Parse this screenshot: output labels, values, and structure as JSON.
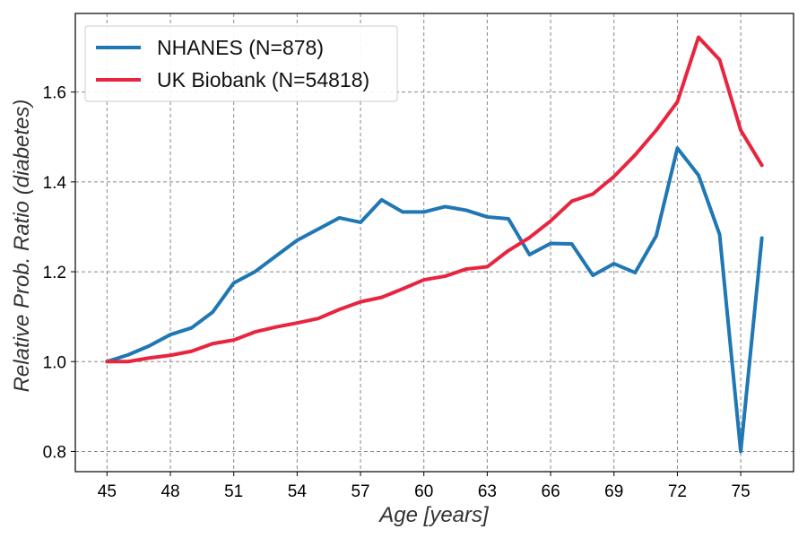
{
  "chart_data": {
    "type": "line",
    "title": "",
    "xlabel": "Age [years]",
    "ylabel": "Relative Prob. Ratio (diabetes)",
    "xlim": [
      43.5,
      77.5
    ],
    "ylim": [
      0.755,
      1.775
    ],
    "xticks": [
      45,
      48,
      51,
      54,
      57,
      60,
      63,
      66,
      69,
      72,
      75
    ],
    "yticks": [
      0.8,
      1.0,
      1.2,
      1.4,
      1.6
    ],
    "grid": true,
    "legend_position": "top-left",
    "series": [
      {
        "name": "NHANES (N=878)",
        "color": "#1f77b4",
        "x": [
          45,
          46,
          47,
          48,
          49,
          50,
          51,
          52,
          53,
          54,
          55,
          56,
          57,
          58,
          59,
          60,
          61,
          62,
          63,
          64,
          65,
          66,
          67,
          68,
          69,
          70,
          71,
          72,
          73,
          74,
          75,
          76
        ],
        "y": [
          1.0,
          1.015,
          1.035,
          1.06,
          1.075,
          1.11,
          1.175,
          1.2,
          1.235,
          1.27,
          1.295,
          1.32,
          1.31,
          1.36,
          1.333,
          1.333,
          1.345,
          1.337,
          1.322,
          1.318,
          1.238,
          1.263,
          1.262,
          1.192,
          1.218,
          1.198,
          1.28,
          1.475,
          1.415,
          1.283,
          0.8,
          1.275
        ]
      },
      {
        "name": "UK Biobank (N=54818)",
        "color": "#e8253f",
        "x": [
          45,
          46,
          47,
          48,
          49,
          50,
          51,
          52,
          53,
          54,
          55,
          56,
          57,
          58,
          59,
          60,
          61,
          62,
          63,
          64,
          65,
          66,
          67,
          68,
          69,
          70,
          71,
          72,
          73,
          74,
          75,
          76
        ],
        "y": [
          1.0,
          1.0,
          1.008,
          1.014,
          1.023,
          1.04,
          1.048,
          1.066,
          1.077,
          1.086,
          1.096,
          1.116,
          1.133,
          1.143,
          1.162,
          1.182,
          1.19,
          1.206,
          1.211,
          1.247,
          1.276,
          1.313,
          1.357,
          1.373,
          1.412,
          1.46,
          1.515,
          1.578,
          1.722,
          1.672,
          1.515,
          1.437
        ]
      }
    ]
  }
}
